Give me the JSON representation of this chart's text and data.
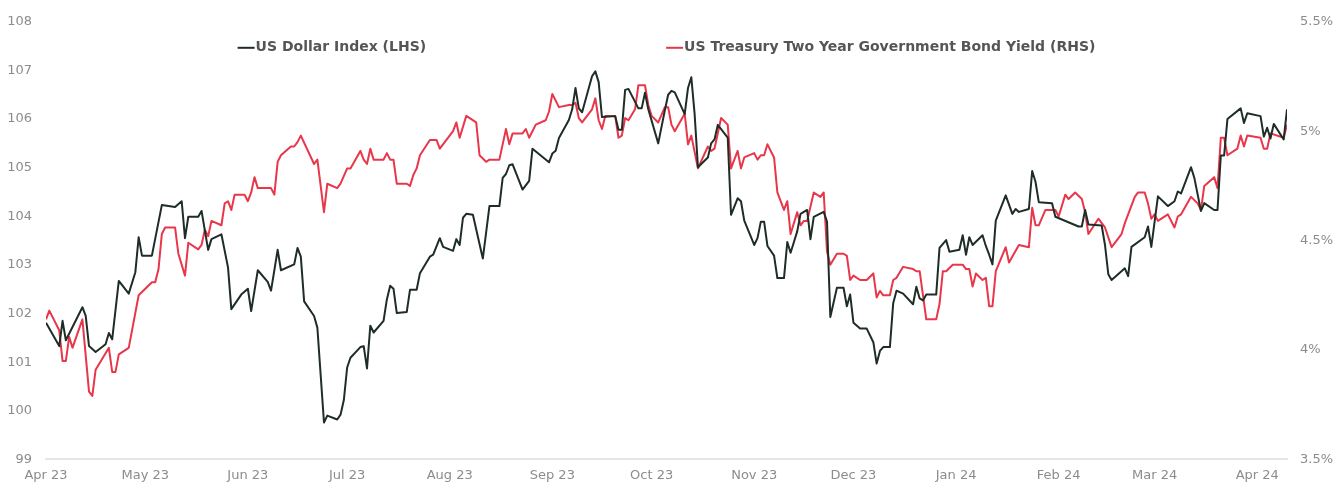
{
  "chart_data": {
    "type": "line",
    "legend": "top",
    "xlim": [
      "2023-04-01",
      "2024-04-10"
    ],
    "xticks": [
      {
        "value": "2023-04-01",
        "label": "Apr 23"
      },
      {
        "value": "2023-05-01",
        "label": "May 23"
      },
      {
        "value": "2023-06-01",
        "label": "Jun 23"
      },
      {
        "value": "2023-07-01",
        "label": "Jul 23"
      },
      {
        "value": "2023-08-01",
        "label": "Aug 23"
      },
      {
        "value": "2023-09-01",
        "label": "Sep 23"
      },
      {
        "value": "2023-10-01",
        "label": "Oct 23"
      },
      {
        "value": "2023-11-01",
        "label": "Nov 23"
      },
      {
        "value": "2023-12-01",
        "label": "Dec 23"
      },
      {
        "value": "2024-01-01",
        "label": "Jan 24"
      },
      {
        "value": "2024-02-01",
        "label": "Feb 24"
      },
      {
        "value": "2024-03-01",
        "label": "Mar 24"
      },
      {
        "value": "2024-04-01",
        "label": "Apr 24"
      }
    ],
    "ylim": [
      99,
      108
    ],
    "yticks": [
      99,
      100,
      101,
      102,
      103,
      104,
      105,
      106,
      107,
      108
    ],
    "y2lim": [
      3.5,
      5.5
    ],
    "y2ticks": [
      {
        "value": 3.5,
        "label": "3.5%"
      },
      {
        "value": 4,
        "label": "4%"
      },
      {
        "value": 4.5,
        "label": "4.5%"
      },
      {
        "value": 5,
        "label": "5%"
      },
      {
        "value": 5.5,
        "label": "5.5%"
      }
    ],
    "series": [
      {
        "name": "US Dollar Index (LHS)",
        "color": "#1f2d27",
        "x": [
          "2023-04-01",
          "2023-04-05",
          "2023-04-06",
          "2023-04-07",
          "2023-04-12",
          "2023-04-13",
          "2023-04-14",
          "2023-04-16",
          "2023-04-19",
          "2023-04-20",
          "2023-04-21",
          "2023-04-23",
          "2023-04-26",
          "2023-04-28",
          "2023-04-29",
          "2023-04-30",
          "2023-05-03",
          "2023-05-06",
          "2023-05-10",
          "2023-05-12",
          "2023-05-13",
          "2023-05-14",
          "2023-05-17",
          "2023-05-18",
          "2023-05-20",
          "2023-05-21",
          "2023-05-24",
          "2023-05-26",
          "2023-05-27",
          "2023-05-30",
          "2023-06-01",
          "2023-06-02",
          "2023-06-04",
          "2023-06-07",
          "2023-06-08",
          "2023-06-10",
          "2023-06-11",
          "2023-06-15",
          "2023-06-16",
          "2023-06-17",
          "2023-06-18",
          "2023-06-21",
          "2023-06-22",
          "2023-06-24",
          "2023-06-25",
          "2023-06-28",
          "2023-06-29",
          "2023-06-30",
          "2023-07-01",
          "2023-07-02",
          "2023-07-05",
          "2023-07-06",
          "2023-07-07",
          "2023-07-08",
          "2023-07-09",
          "2023-07-12",
          "2023-07-13",
          "2023-07-14",
          "2023-07-15",
          "2023-07-16",
          "2023-07-19",
          "2023-07-20",
          "2023-07-22",
          "2023-07-23",
          "2023-07-26",
          "2023-07-27",
          "2023-07-29",
          "2023-07-30",
          "2023-08-02",
          "2023-08-03",
          "2023-08-04",
          "2023-08-05",
          "2023-08-06",
          "2023-08-08",
          "2023-08-11",
          "2023-08-13",
          "2023-08-16",
          "2023-08-17",
          "2023-08-18",
          "2023-08-19",
          "2023-08-20",
          "2023-08-23",
          "2023-08-25",
          "2023-08-26",
          "2023-08-31",
          "2023-09-01",
          "2023-09-02",
          "2023-09-03",
          "2023-09-06",
          "2023-09-07",
          "2023-09-08",
          "2023-09-09",
          "2023-09-10",
          "2023-09-13",
          "2023-09-14",
          "2023-09-15",
          "2023-09-16",
          "2023-09-20",
          "2023-09-21",
          "2023-09-22",
          "2023-09-23",
          "2023-09-24",
          "2023-09-27",
          "2023-09-28",
          "2023-09-29",
          "2023-09-30",
          "2023-10-03",
          "2023-10-05",
          "2023-10-06",
          "2023-10-07",
          "2023-10-08",
          "2023-10-11",
          "2023-10-12",
          "2023-10-13",
          "2023-10-14",
          "2023-10-15",
          "2023-10-18",
          "2023-10-19",
          "2023-10-20",
          "2023-10-21",
          "2023-10-24",
          "2023-10-25",
          "2023-10-27",
          "2023-10-28",
          "2023-10-29",
          "2023-11-01",
          "2023-11-02",
          "2023-11-03",
          "2023-11-04",
          "2023-11-05",
          "2023-11-07",
          "2023-11-08",
          "2023-11-10",
          "2023-11-11",
          "2023-11-12",
          "2023-11-14",
          "2023-11-15",
          "2023-11-17",
          "2023-11-18",
          "2023-11-19",
          "2023-11-22",
          "2023-11-23",
          "2023-11-24",
          "2023-11-26",
          "2023-11-28",
          "2023-11-29",
          "2023-11-30",
          "2023-12-01",
          "2023-12-03",
          "2023-12-05",
          "2023-12-07",
          "2023-12-08",
          "2023-12-09",
          "2023-12-10",
          "2023-12-12",
          "2023-12-13",
          "2023-12-14",
          "2023-12-16",
          "2023-12-19",
          "2023-12-20",
          "2023-12-21",
          "2023-12-22",
          "2023-12-23",
          "2023-12-26",
          "2023-12-27",
          "2023-12-29",
          "2023-12-30",
          "2024-01-02",
          "2024-01-03",
          "2024-01-04",
          "2024-01-05",
          "2024-01-06",
          "2024-01-09",
          "2024-01-10",
          "2024-01-11",
          "2024-01-12",
          "2024-01-13",
          "2024-01-16",
          "2024-01-18",
          "2024-01-19",
          "2024-01-20",
          "2024-01-23",
          "2024-01-24",
          "2024-01-25",
          "2024-01-26",
          "2024-01-30",
          "2024-01-31",
          "2024-02-07",
          "2024-02-08",
          "2024-02-09",
          "2024-02-10",
          "2024-02-14",
          "2024-02-15",
          "2024-02-16",
          "2024-02-17",
          "2024-02-21",
          "2024-02-22",
          "2024-02-23",
          "2024-02-27",
          "2024-02-28",
          "2024-02-29",
          "2024-03-02",
          "2024-03-05",
          "2024-03-07",
          "2024-03-08",
          "2024-03-09",
          "2024-03-12",
          "2024-03-13",
          "2024-03-15",
          "2024-03-16",
          "2024-03-19",
          "2024-03-20",
          "2024-03-21",
          "2024-03-22",
          "2024-03-23",
          "2024-03-27",
          "2024-03-28",
          "2024-03-29",
          "2024-04-02",
          "2024-04-03",
          "2024-04-04",
          "2024-04-05",
          "2024-04-06",
          "2024-04-09",
          "2024-04-10"
        ],
        "values": [
          101.81,
          101.33,
          101.85,
          101.45,
          102.13,
          101.95,
          101.33,
          101.21,
          101.37,
          101.6,
          101.47,
          102.67,
          102.41,
          102.85,
          103.57,
          103.19,
          103.19,
          104.23,
          104.19,
          104.31,
          103.55,
          103.99,
          103.99,
          104.11,
          103.31,
          103.53,
          103.63,
          102.95,
          102.09,
          102.39,
          102.51,
          102.05,
          102.89,
          102.65,
          102.47,
          103.31,
          102.89,
          103.01,
          103.35,
          103.17,
          102.25,
          101.95,
          101.71,
          99.76,
          99.9,
          99.82,
          99.92,
          100.22,
          100.89,
          101.09,
          101.31,
          101.33,
          100.87,
          101.75,
          101.61,
          101.85,
          102.29,
          102.57,
          102.51,
          102.01,
          102.03,
          102.49,
          102.49,
          102.83,
          103.17,
          103.21,
          103.55,
          103.37,
          103.29,
          103.53,
          103.41,
          103.97,
          104.05,
          104.03,
          103.13,
          104.21,
          104.21,
          104.79,
          104.87,
          105.05,
          105.07,
          104.55,
          104.73,
          105.39,
          105.11,
          105.29,
          105.35,
          105.61,
          105.98,
          106.2,
          106.64,
          106.22,
          106.14,
          106.88,
          106.98,
          106.76,
          106.04,
          106.06,
          105.78,
          105.78,
          106.6,
          106.62,
          106.22,
          106.22,
          106.54,
          106.2,
          105.5,
          106.18,
          106.5,
          106.58,
          106.55,
          106.1,
          106.64,
          106.86,
          106.1,
          105.01,
          105.21,
          105.5,
          105.58,
          105.88,
          105.62,
          104.03,
          104.37,
          104.31,
          103.91,
          103.41,
          103.55,
          103.89,
          103.89,
          103.39,
          103.19,
          102.73,
          102.73,
          103.47,
          103.25,
          103.69,
          104.05,
          104.13,
          103.53,
          103.99,
          104.09,
          103.89,
          101.93,
          102.53,
          102.53,
          102.15,
          102.39,
          101.81,
          101.69,
          101.69,
          101.41,
          100.97,
          101.23,
          101.31,
          101.31,
          102.21,
          102.47,
          102.41,
          102.19,
          102.55,
          102.31,
          102.27,
          102.39,
          102.39,
          103.35,
          103.51,
          103.27,
          103.31,
          103.61,
          103.21,
          103.57,
          103.41,
          103.61,
          103.39,
          103.21,
          103.01,
          103.91,
          104.43,
          104.05,
          104.15,
          104.09,
          104.15,
          104.93,
          104.71,
          104.29,
          104.27,
          103.99,
          103.79,
          103.79,
          104.13,
          103.83,
          103.81,
          103.41,
          102.81,
          102.69,
          102.93,
          102.77,
          103.37,
          103.57,
          103.79,
          103.37,
          104.41,
          104.21,
          104.31,
          104.51,
          104.47,
          105.01,
          104.79,
          104.11,
          104.27,
          104.13,
          104.13,
          105.25,
          105.25,
          106.0,
          106.22,
          105.92,
          106.12,
          106.06,
          105.64,
          105.82,
          105.6,
          105.9,
          105.58,
          106.2
        ]
      },
      {
        "name": "US Treasury Two Year Government Bond Yield (RHS)",
        "color": "#e8364a",
        "axis": "y2",
        "x": [
          "2023-04-01",
          "2023-04-02",
          "2023-04-05",
          "2023-04-06",
          "2023-04-07",
          "2023-04-08",
          "2023-04-09",
          "2023-04-12",
          "2023-04-14",
          "2023-04-15",
          "2023-04-16",
          "2023-04-20",
          "2023-04-21",
          "2023-04-22",
          "2023-04-23",
          "2023-04-26",
          "2023-04-29",
          "2023-05-03",
          "2023-05-04",
          "2023-05-05",
          "2023-05-06",
          "2023-05-07",
          "2023-05-10",
          "2023-05-11",
          "2023-05-13",
          "2023-05-14",
          "2023-05-17",
          "2023-05-18",
          "2023-05-19",
          "2023-05-20",
          "2023-05-21",
          "2023-05-24",
          "2023-05-25",
          "2023-05-26",
          "2023-05-27",
          "2023-05-28",
          "2023-05-31",
          "2023-06-01",
          "2023-06-02",
          "2023-06-03",
          "2023-06-04",
          "2023-06-08",
          "2023-06-09",
          "2023-06-10",
          "2023-06-11",
          "2023-06-14",
          "2023-06-15",
          "2023-06-16",
          "2023-06-17",
          "2023-06-21",
          "2023-06-22",
          "2023-06-24",
          "2023-06-25",
          "2023-06-28",
          "2023-06-29",
          "2023-07-01",
          "2023-07-02",
          "2023-07-05",
          "2023-07-06",
          "2023-07-07",
          "2023-07-08",
          "2023-07-09",
          "2023-07-12",
          "2023-07-13",
          "2023-07-14",
          "2023-07-15",
          "2023-07-16",
          "2023-07-19",
          "2023-07-20",
          "2023-07-21",
          "2023-07-22",
          "2023-07-23",
          "2023-07-26",
          "2023-07-28",
          "2023-07-29",
          "2023-08-02",
          "2023-08-03",
          "2023-08-04",
          "2023-08-06",
          "2023-08-09",
          "2023-08-10",
          "2023-08-12",
          "2023-08-13",
          "2023-08-16",
          "2023-08-18",
          "2023-08-19",
          "2023-08-20",
          "2023-08-23",
          "2023-08-24",
          "2023-08-25",
          "2023-08-27",
          "2023-08-30",
          "2023-08-31",
          "2023-09-01",
          "2023-09-03",
          "2023-09-06",
          "2023-09-07",
          "2023-09-08",
          "2023-09-09",
          "2023-09-10",
          "2023-09-13",
          "2023-09-14",
          "2023-09-15",
          "2023-09-16",
          "2023-09-17",
          "2023-09-20",
          "2023-09-21",
          "2023-09-22",
          "2023-09-23",
          "2023-09-24",
          "2023-09-26",
          "2023-09-27",
          "2023-09-29",
          "2023-09-30",
          "2023-10-01",
          "2023-10-03",
          "2023-10-05",
          "2023-10-06",
          "2023-10-07",
          "2023-10-08",
          "2023-10-11",
          "2023-10-12",
          "2023-10-13",
          "2023-10-15",
          "2023-10-18",
          "2023-10-19",
          "2023-10-20",
          "2023-10-22",
          "2023-10-24",
          "2023-10-25",
          "2023-10-27",
          "2023-10-28",
          "2023-10-29",
          "2023-11-01",
          "2023-11-02",
          "2023-11-03",
          "2023-11-04",
          "2023-11-05",
          "2023-11-07",
          "2023-11-08",
          "2023-11-10",
          "2023-11-11",
          "2023-11-12",
          "2023-11-14",
          "2023-11-15",
          "2023-11-16",
          "2023-11-17",
          "2023-11-19",
          "2023-11-21",
          "2023-11-22",
          "2023-11-23",
          "2023-11-24",
          "2023-11-26",
          "2023-11-28",
          "2023-11-29",
          "2023-11-30",
          "2023-12-01",
          "2023-12-03",
          "2023-12-05",
          "2023-12-07",
          "2023-12-08",
          "2023-12-09",
          "2023-12-10",
          "2023-12-12",
          "2023-12-13",
          "2023-12-14",
          "2023-12-16",
          "2023-12-19",
          "2023-12-20",
          "2023-12-21",
          "2023-12-23",
          "2023-12-26",
          "2023-12-27",
          "2023-12-28",
          "2023-12-29",
          "2023-12-31",
          "2024-01-03",
          "2024-01-04",
          "2024-01-05",
          "2024-01-06",
          "2024-01-07",
          "2024-01-09",
          "2024-01-10",
          "2024-01-11",
          "2024-01-12",
          "2024-01-13",
          "2024-01-16",
          "2024-01-17",
          "2024-01-20",
          "2024-01-23",
          "2024-01-24",
          "2024-01-25",
          "2024-01-26",
          "2024-01-28",
          "2024-01-31",
          "2024-02-01",
          "2024-02-03",
          "2024-02-04",
          "2024-02-06",
          "2024-02-08",
          "2024-02-09",
          "2024-02-10",
          "2024-02-13",
          "2024-02-15",
          "2024-02-17",
          "2024-02-20",
          "2024-02-21",
          "2024-02-24",
          "2024-02-25",
          "2024-02-27",
          "2024-02-28",
          "2024-02-29",
          "2024-03-01",
          "2024-03-02",
          "2024-03-05",
          "2024-03-07",
          "2024-03-08",
          "2024-03-09",
          "2024-03-12",
          "2024-03-14",
          "2024-03-15",
          "2024-03-16",
          "2024-03-19",
          "2024-03-20",
          "2024-03-21",
          "2024-03-22",
          "2024-03-23",
          "2024-03-26",
          "2024-03-27",
          "2024-03-28",
          "2024-03-29",
          "2024-04-02",
          "2024-04-03",
          "2024-04-04",
          "2024-04-05",
          "2024-04-09",
          "2024-04-10"
        ],
        "values": [
          4.14,
          4.18,
          4.09,
          3.95,
          3.95,
          4.06,
          4.01,
          4.14,
          3.81,
          3.79,
          3.91,
          4.01,
          3.9,
          3.9,
          3.98,
          4.01,
          4.25,
          4.31,
          4.31,
          4.37,
          4.53,
          4.56,
          4.56,
          4.44,
          4.34,
          4.49,
          4.46,
          4.48,
          4.55,
          4.52,
          4.59,
          4.57,
          4.67,
          4.68,
          4.64,
          4.71,
          4.71,
          4.68,
          4.72,
          4.79,
          4.74,
          4.74,
          4.71,
          4.86,
          4.89,
          4.93,
          4.93,
          4.95,
          4.98,
          4.85,
          4.87,
          4.63,
          4.76,
          4.74,
          4.76,
          4.83,
          4.83,
          4.91,
          4.87,
          4.85,
          4.92,
          4.87,
          4.87,
          4.9,
          4.87,
          4.87,
          4.76,
          4.76,
          4.75,
          4.8,
          4.83,
          4.89,
          4.96,
          4.96,
          4.92,
          5.0,
          5.04,
          4.97,
          5.07,
          5.04,
          4.89,
          4.86,
          4.87,
          4.87,
          5.01,
          4.94,
          4.99,
          4.99,
          5.01,
          4.97,
          5.03,
          5.05,
          5.09,
          5.17,
          5.11,
          5.12,
          5.12,
          5.13,
          5.06,
          5.04,
          5.1,
          5.15,
          5.05,
          5.01,
          5.07,
          5.07,
          4.97,
          4.98,
          5.06,
          5.05,
          5.1,
          5.21,
          5.21,
          5.12,
          5.07,
          5.04,
          5.11,
          5.11,
          5.03,
          5.0,
          5.08,
          4.94,
          4.98,
          4.83,
          4.93,
          4.91,
          4.92,
          5.06,
          5.03,
          4.83,
          4.91,
          4.83,
          4.88,
          4.9,
          4.87,
          4.89,
          4.89,
          4.94,
          4.88,
          4.72,
          4.64,
          4.68,
          4.53,
          4.63,
          4.57,
          4.59,
          4.59,
          4.72,
          4.7,
          4.72,
          4.45,
          4.39,
          4.44,
          4.44,
          4.43,
          4.32,
          4.34,
          4.32,
          4.32,
          4.35,
          4.24,
          4.27,
          4.25,
          4.25,
          4.32,
          4.33,
          4.38,
          4.37,
          4.36,
          4.36,
          4.14,
          4.14,
          4.21,
          4.36,
          4.36,
          4.39,
          4.39,
          4.37,
          4.37,
          4.29,
          4.35,
          4.32,
          4.33,
          4.2,
          4.2,
          4.36,
          4.47,
          4.4,
          4.48,
          4.47,
          4.65,
          4.57,
          4.57,
          4.64,
          4.64,
          4.61,
          4.71,
          4.69,
          4.72,
          4.69,
          4.63,
          4.53,
          4.6,
          4.56,
          4.47,
          4.53,
          4.58,
          4.7,
          4.72,
          4.72,
          4.67,
          4.6,
          4.62,
          4.59,
          4.62,
          4.56,
          4.61,
          4.62,
          4.7,
          4.67,
          4.64,
          4.75,
          4.79,
          4.74,
          4.97,
          4.97,
          4.89,
          4.92,
          4.98,
          4.93,
          4.98,
          4.97,
          4.92,
          4.92,
          4.99,
          4.97,
          5.03
        ]
      }
    ]
  }
}
